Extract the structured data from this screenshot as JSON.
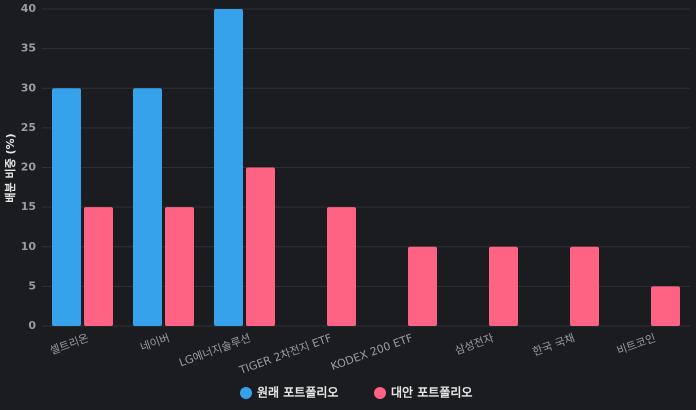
{
  "chart_data": {
    "type": "bar",
    "y_label": "배분 비중 (%)",
    "categories": [
      "셀트리온",
      "네이버",
      "LG에너지솔루션",
      "TIGER 2차전지 ETF",
      "KODEX 200 ETF",
      "삼성전자",
      "한국 국채",
      "비트코인"
    ],
    "series": [
      {
        "name": "원래 포트폴리오",
        "color": "#36a2eb",
        "values": [
          30,
          30,
          40,
          0,
          0,
          0,
          0,
          0
        ]
      },
      {
        "name": "대안 포트폴리오",
        "color": "#ff6384",
        "values": [
          15,
          15,
          20,
          15,
          10,
          10,
          10,
          5
        ]
      }
    ],
    "ylim": [
      0,
      40
    ],
    "yticks": [
      0,
      5,
      10,
      15,
      20,
      25,
      30,
      35,
      40
    ],
    "grid": true,
    "legend": "bottom"
  }
}
